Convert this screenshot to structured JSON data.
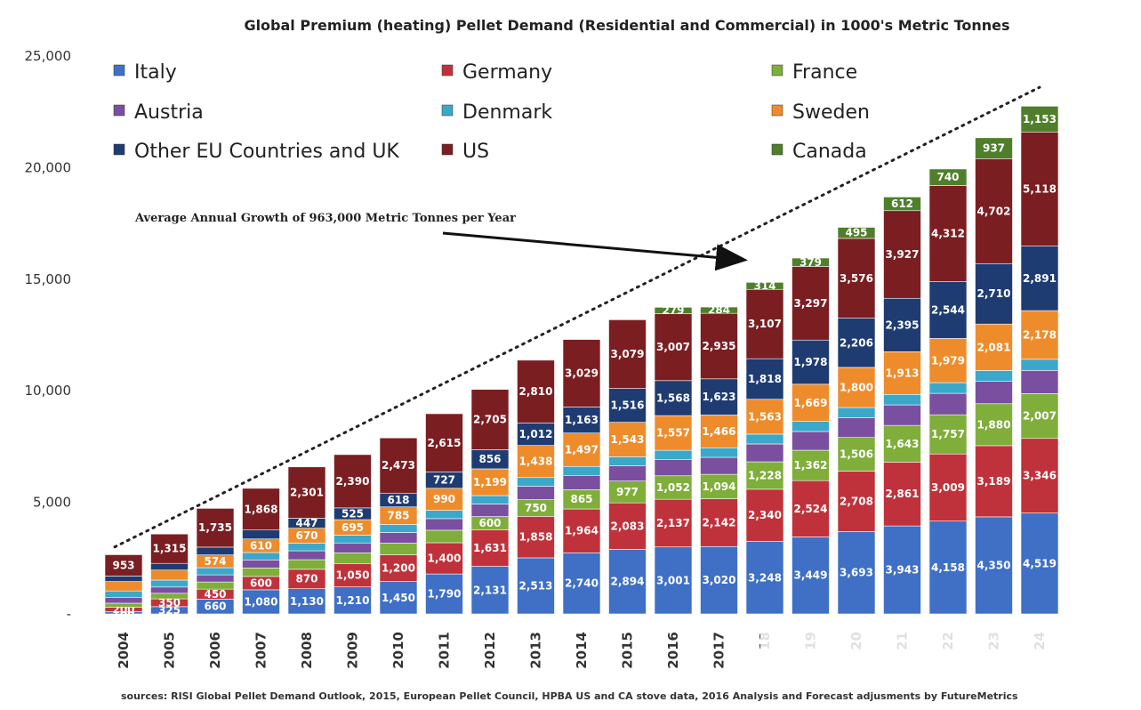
{
  "chart_data": {
    "type": "bar",
    "stacked": true,
    "title": "Global Premium (heating) Pellet Demand (Residential and Commercial) in 1000's Metric Tonnes",
    "categories": [
      "2004",
      "2005",
      "2006",
      "2007",
      "2008",
      "2009",
      "2010",
      "2011",
      "2012",
      "2013",
      "2014",
      "2015",
      "2016",
      "2017",
      "18",
      "19",
      "20",
      "21",
      "22",
      "23",
      "24"
    ],
    "y_ticks": [
      "-",
      "5,000",
      "10,000",
      "15,000",
      "20,000",
      "25,000"
    ],
    "ylim": [
      0,
      25000
    ],
    "series": [
      {
        "name": "Italy",
        "color": "#3f70c6",
        "values": [
          100,
          325,
          660,
          1080,
          1130,
          1210,
          1450,
          1790,
          2131,
          2513,
          2740,
          2894,
          3001,
          3020,
          3248,
          3449,
          3693,
          3943,
          4158,
          4350,
          4519
        ],
        "labels": [
          "100",
          "325",
          "660",
          "1,080",
          "1,130",
          "1,210",
          "1,450",
          "1,790",
          "2,131",
          "2,513",
          "2,740",
          "2,894",
          "3,001",
          "3,020",
          "3,248",
          "3,449",
          "3,693",
          "3,943",
          "4,158",
          "4,350",
          "4,519"
        ]
      },
      {
        "name": "Germany",
        "color": "#c0323b",
        "values": [
          200,
          350,
          450,
          600,
          870,
          1050,
          1200,
          1400,
          1631,
          1858,
          1964,
          2083,
          2137,
          2142,
          2340,
          2524,
          2708,
          2861,
          3009,
          3189,
          3346
        ],
        "labels": [
          "200",
          "350",
          "450",
          "600",
          "870",
          "1,050",
          "1,200",
          "1,400",
          "1,631",
          "1,858",
          "1,964",
          "2,083",
          "2,137",
          "2,142",
          "2,340",
          "2,524",
          "2,708",
          "2,861",
          "3,009",
          "3,189",
          "3,346"
        ]
      },
      {
        "name": "France",
        "color": "#7fae3a",
        "values": [
          180,
          250,
          320,
          380,
          430,
          480,
          520,
          560,
          600,
          750,
          865,
          977,
          1052,
          1094,
          1228,
          1362,
          1506,
          1643,
          1757,
          1880,
          2007
        ],
        "labels": [
          "",
          "",
          "",
          "",
          "",
          "",
          "",
          "",
          "600",
          "750",
          "865",
          "977",
          "1,052",
          "1,094",
          "1,228",
          "1,362",
          "1,506",
          "1,643",
          "1,757",
          "1,880",
          "2,007"
        ]
      },
      {
        "name": "Austria",
        "color": "#7a4fa0",
        "values": [
          250,
          280,
          320,
          360,
          400,
          440,
          480,
          520,
          560,
          600,
          640,
          680,
          720,
          760,
          800,
          840,
          880,
          920,
          960,
          1000,
          1040
        ],
        "labels": [
          "",
          "",
          "",
          "",
          "",
          "",
          "",
          "",
          "",
          "",
          "",
          "",
          "",
          "",
          "",
          "",
          "",
          "",
          "",
          "",
          ""
        ]
      },
      {
        "name": "Denmark",
        "color": "#3ba8c9",
        "values": [
          300,
          310,
          320,
          330,
          340,
          350,
          360,
          370,
          380,
          390,
          400,
          410,
          420,
          430,
          440,
          450,
          460,
          470,
          480,
          490,
          500
        ],
        "labels": [
          "",
          "",
          "",
          "",
          "",
          "",
          "",
          "",
          "",
          "",
          "",
          "",
          "",
          "",
          "",
          "",
          "",
          "",
          "",
          "",
          ""
        ]
      },
      {
        "name": "Sweden",
        "color": "#ee8c2c",
        "values": [
          420,
          450,
          574,
          610,
          670,
          695,
          785,
          990,
          1199,
          1438,
          1497,
          1543,
          1557,
          1466,
          1563,
          1669,
          1800,
          1913,
          1979,
          2081,
          2178
        ],
        "labels": [
          "",
          "",
          "574",
          "610",
          "670",
          "695",
          "785",
          "990",
          "1,199",
          "1,438",
          "1,497",
          "1,543",
          "1,557",
          "1,466",
          "1,563",
          "1,669",
          "1,800",
          "1,913",
          "1,979",
          "2,081",
          "2,178"
        ]
      },
      {
        "name": "Other EU Countries and UK",
        "color": "#1f3c72",
        "values": [
          250,
          300,
          350,
          400,
          447,
          525,
          618,
          727,
          856,
          1012,
          1163,
          1516,
          1568,
          1623,
          1818,
          1978,
          2206,
          2395,
          2544,
          2710,
          2891
        ],
        "labels": [
          "",
          "",
          "",
          "",
          "447",
          "525",
          "618",
          "727",
          "856",
          "1,012",
          "1,163",
          "1,516",
          "1,568",
          "1,623",
          "1,818",
          "1,978",
          "2,206",
          "2,395",
          "2,544",
          "2,710",
          "2,891"
        ]
      },
      {
        "name": "US",
        "color": "#7a1e22",
        "values": [
          953,
          1315,
          1735,
          1868,
          2301,
          2390,
          2473,
          2615,
          2705,
          2810,
          3029,
          3079,
          3007,
          2935,
          3107,
          3297,
          3576,
          3927,
          4312,
          4702,
          5118
        ],
        "labels": [
          "953",
          "1,315",
          "1,735",
          "1,868",
          "2,301",
          "2,390",
          "2,473",
          "2,615",
          "2,705",
          "2,810",
          "3,029",
          "3,079",
          "3,007",
          "2,935",
          "3,107",
          "3,297",
          "3,576",
          "3,927",
          "4,312",
          "4,702",
          "5,118"
        ]
      },
      {
        "name": "Canada",
        "color": "#4f7f2a",
        "values": [
          0,
          0,
          0,
          0,
          0,
          0,
          0,
          0,
          0,
          0,
          0,
          0,
          279,
          284,
          314,
          379,
          495,
          612,
          740,
          937,
          1153
        ],
        "labels": [
          "",
          "",
          "",
          "",
          "",
          "",
          "",
          "",
          "",
          "",
          "",
          "",
          "279",
          "284",
          "314",
          "379",
          "495",
          "612",
          "740",
          "937",
          "1,153"
        ]
      }
    ],
    "legend_placement": "top-left, three columns",
    "annotation": "Average Annual Growth of 963,000 Metric Tonnes per Year",
    "grid": false,
    "trend_line": {
      "style": "dotted",
      "from": {
        "x": "2004",
        "y": 3000
      },
      "to": {
        "x": "24",
        "y": 23600
      }
    }
  },
  "source_note": "sources: RISI Global Pellet Demand Outlook, 2015, European Pellet Council, HPBA US and CA stove data, 2016 Analysis and Forecast adjusments by FutureMetrics"
}
